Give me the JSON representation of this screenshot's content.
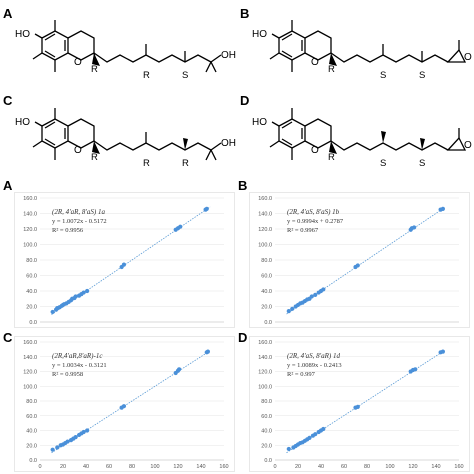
{
  "panels": {
    "top": [
      {
        "letter": "A",
        "labels": {
          "oh": "HO",
          "o": "O",
          "tail": "OH",
          "s1": "R",
          "s2": "R",
          "s3": "S"
        }
      },
      {
        "letter": "B",
        "labels": {
          "oh": "HO",
          "o": "O",
          "tail": "O",
          "s1": "R",
          "s2": "S",
          "s3": "S"
        }
      },
      {
        "letter": "C",
        "labels": {
          "oh": "HO",
          "o": "O",
          "tail": "OH",
          "s1": "R",
          "s2": "R",
          "s3": "R"
        }
      },
      {
        "letter": "D",
        "labels": {
          "oh": "HO",
          "o": "O",
          "tail": "O",
          "s1": "R",
          "s2": "S",
          "s3": "S"
        }
      }
    ],
    "bottom_letters": [
      "A",
      "B",
      "C",
      "D"
    ]
  },
  "chart_data": [
    {
      "type": "scatter",
      "title": "(2R, 4'aR, 8'aS) 1a",
      "equation": "y = 1.0072x - 0.5172",
      "r2": "R² = 0.9956",
      "xlim": [
        0,
        160
      ],
      "ylim": [
        0,
        160
      ],
      "xticks": [],
      "yticks": [
        "0.0",
        "20.0",
        "40.0",
        "60.0",
        "80.0",
        "100.0",
        "120.0",
        "140.0",
        "160.0"
      ],
      "trend": {
        "slope": 1.0072,
        "intercept": -0.5172
      },
      "points": [
        [
          11,
          13
        ],
        [
          14,
          16
        ],
        [
          15,
          18
        ],
        [
          17,
          19
        ],
        [
          19,
          21
        ],
        [
          20,
          22
        ],
        [
          21,
          23
        ],
        [
          23,
          24
        ],
        [
          25,
          26
        ],
        [
          27,
          28
        ],
        [
          28,
          30
        ],
        [
          30,
          31
        ],
        [
          31,
          33
        ],
        [
          34,
          34
        ],
        [
          36,
          36
        ],
        [
          38,
          38
        ],
        [
          41,
          40
        ],
        [
          71,
          71
        ],
        [
          73,
          74
        ],
        [
          118,
          119
        ],
        [
          120,
          121
        ],
        [
          122,
          123
        ],
        [
          144,
          145
        ],
        [
          145,
          146
        ]
      ],
      "color": "#4a90d9"
    },
    {
      "type": "scatter",
      "title": "(2R, 4'aS, 8'aS) 1b",
      "equation": "y = 0.9994x + 0.2787",
      "r2": "R² = 0.9967",
      "xlim": [
        0,
        160
      ],
      "ylim": [
        0,
        160
      ],
      "xticks": [],
      "yticks": [
        "0.0",
        "20.0",
        "40.0",
        "60.0",
        "80.0",
        "100.0",
        "120.0",
        "140.0",
        "160.0"
      ],
      "trend": {
        "slope": 0.9994,
        "intercept": 0.2787
      },
      "points": [
        [
          12,
          14
        ],
        [
          15,
          17
        ],
        [
          18,
          20
        ],
        [
          20,
          22
        ],
        [
          22,
          24
        ],
        [
          24,
          25
        ],
        [
          26,
          27
        ],
        [
          28,
          29
        ],
        [
          30,
          30
        ],
        [
          32,
          33
        ],
        [
          35,
          35
        ],
        [
          38,
          38
        ],
        [
          40,
          40
        ],
        [
          42,
          42
        ],
        [
          70,
          71
        ],
        [
          72,
          73
        ],
        [
          118,
          119
        ],
        [
          119,
          121
        ],
        [
          121,
          122
        ],
        [
          144,
          145
        ],
        [
          146,
          146
        ]
      ],
      "color": "#4a90d9"
    },
    {
      "type": "scatter",
      "title": "(2R,4'aR,8'aR)-1c",
      "equation": "y = 1.0034x - 0.3121",
      "r2": "R² = 0.9958",
      "xlim": [
        0,
        160
      ],
      "ylim": [
        0,
        160
      ],
      "xticks": [
        "0",
        "20",
        "40",
        "60",
        "80",
        "100",
        "120",
        "140",
        "160"
      ],
      "yticks": [
        "0.0",
        "20.0",
        "40.0",
        "60.0",
        "80.0",
        "100.0",
        "120.0",
        "140.0",
        "160.0"
      ],
      "trend": {
        "slope": 1.0034,
        "intercept": -0.3121
      },
      "points": [
        [
          11,
          14
        ],
        [
          15,
          17
        ],
        [
          18,
          20
        ],
        [
          20,
          21
        ],
        [
          22,
          23
        ],
        [
          24,
          25
        ],
        [
          27,
          27
        ],
        [
          29,
          29
        ],
        [
          31,
          31
        ],
        [
          34,
          34
        ],
        [
          36,
          36
        ],
        [
          38,
          38
        ],
        [
          41,
          40
        ],
        [
          71,
          71
        ],
        [
          73,
          73
        ],
        [
          118,
          118
        ],
        [
          120,
          121
        ],
        [
          121,
          123
        ],
        [
          145,
          146
        ],
        [
          146,
          147
        ]
      ],
      "color": "#4a90d9"
    },
    {
      "type": "scatter",
      "title": "(2R, 4'aS, 8'aR) 1d",
      "equation": "y = 1.0089x - 0.2413",
      "r2": "R² = 0.997",
      "xlim": [
        0,
        160
      ],
      "ylim": [
        0,
        160
      ],
      "xticks": [
        "0",
        "20",
        "40",
        "60",
        "80",
        "100",
        "120",
        "140",
        "160"
      ],
      "yticks": [
        "0.0",
        "20.0",
        "40.0",
        "60.0",
        "80.0",
        "100.0",
        "120.0",
        "140.0",
        "160.0"
      ],
      "trend": {
        "slope": 1.0089,
        "intercept": -0.2413
      },
      "points": [
        [
          12,
          15
        ],
        [
          16,
          17
        ],
        [
          18,
          19
        ],
        [
          20,
          21
        ],
        [
          22,
          23
        ],
        [
          24,
          24
        ],
        [
          26,
          26
        ],
        [
          28,
          28
        ],
        [
          30,
          30
        ],
        [
          33,
          33
        ],
        [
          35,
          35
        ],
        [
          38,
          38
        ],
        [
          40,
          40
        ],
        [
          42,
          42
        ],
        [
          70,
          71
        ],
        [
          72,
          72
        ],
        [
          118,
          120
        ],
        [
          120,
          122
        ],
        [
          122,
          123
        ],
        [
          144,
          146
        ],
        [
          146,
          147
        ]
      ],
      "color": "#4a90d9"
    }
  ]
}
